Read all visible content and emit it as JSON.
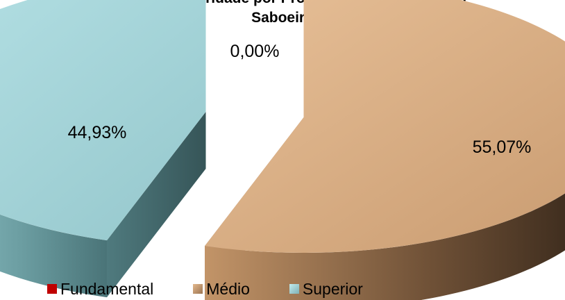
{
  "chart_data": {
    "type": "pie",
    "title_line1": "Nível de Escolaridade por Profissionais da Educação",
    "title_line2": "Saboeiro",
    "categories": [
      "Fundamental",
      "Médio",
      "Superior"
    ],
    "values": [
      0.0,
      55.07,
      44.93
    ],
    "labels": [
      "0,00%",
      "55,07%",
      "44,93%"
    ],
    "colors": [
      "#c00000",
      "#d9ad86",
      "#9fd3d8"
    ],
    "legend_position": "bottom",
    "exploded": true,
    "style": "3d"
  }
}
